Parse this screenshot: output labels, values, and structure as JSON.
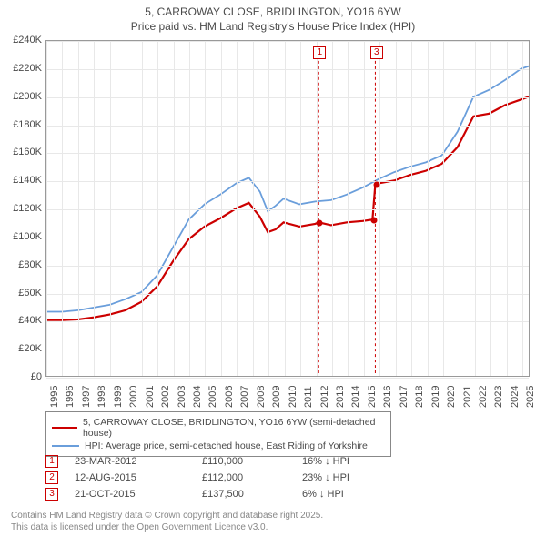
{
  "title_line1": "5, CARROWAY CLOSE, BRIDLINGTON, YO16 6YW",
  "title_line2": "Price paid vs. HM Land Registry's House Price Index (HPI)",
  "chart": {
    "x_min": 1995.0,
    "x_max": 2025.5,
    "y_min": 0,
    "y_max": 240000,
    "y_tick_step": 20000,
    "x_years": [
      1995,
      1996,
      1997,
      1998,
      1999,
      2000,
      2001,
      2002,
      2003,
      2004,
      2005,
      2006,
      2007,
      2008,
      2009,
      2010,
      2011,
      2012,
      2013,
      2014,
      2015,
      2016,
      2017,
      2018,
      2019,
      2020,
      2021,
      2022,
      2023,
      2024,
      2025
    ],
    "y_ticks": [
      "£0",
      "£20K",
      "£40K",
      "£60K",
      "£80K",
      "£100K",
      "£120K",
      "£140K",
      "£160K",
      "£180K",
      "£200K",
      "£220K",
      "£240K"
    ],
    "series": {
      "hpi": {
        "color": "#6a9edb",
        "width": 1.8,
        "points": [
          [
            1995.0,
            46000
          ],
          [
            1996.0,
            46000
          ],
          [
            1997.0,
            47000
          ],
          [
            1998.0,
            49000
          ],
          [
            1999.0,
            51000
          ],
          [
            2000.0,
            55000
          ],
          [
            2001.0,
            60000
          ],
          [
            2002.0,
            72000
          ],
          [
            2003.0,
            92000
          ],
          [
            2004.0,
            112000
          ],
          [
            2005.0,
            123000
          ],
          [
            2006.0,
            130000
          ],
          [
            2007.0,
            138000
          ],
          [
            2007.8,
            142000
          ],
          [
            2008.5,
            132000
          ],
          [
            2009.0,
            118000
          ],
          [
            2009.5,
            122000
          ],
          [
            2010.0,
            127000
          ],
          [
            2011.0,
            123000
          ],
          [
            2012.0,
            125000
          ],
          [
            2013.0,
            126000
          ],
          [
            2014.0,
            130000
          ],
          [
            2015.0,
            135000
          ],
          [
            2016.0,
            141000
          ],
          [
            2017.0,
            146000
          ],
          [
            2018.0,
            150000
          ],
          [
            2019.0,
            153000
          ],
          [
            2020.0,
            158000
          ],
          [
            2021.0,
            175000
          ],
          [
            2022.0,
            200000
          ],
          [
            2023.0,
            205000
          ],
          [
            2024.0,
            212000
          ],
          [
            2025.0,
            220000
          ],
          [
            2025.5,
            222000
          ]
        ]
      },
      "price_paid": {
        "color": "#cc0000",
        "width": 2.2,
        "points": [
          [
            1995.0,
            40000
          ],
          [
            1996.0,
            40000
          ],
          [
            1997.0,
            40500
          ],
          [
            1998.0,
            42000
          ],
          [
            1999.0,
            44000
          ],
          [
            2000.0,
            47000
          ],
          [
            2001.0,
            53000
          ],
          [
            2002.0,
            64000
          ],
          [
            2003.0,
            82000
          ],
          [
            2004.0,
            98000
          ],
          [
            2005.0,
            107000
          ],
          [
            2006.0,
            113000
          ],
          [
            2007.0,
            120000
          ],
          [
            2007.8,
            124000
          ],
          [
            2008.5,
            114000
          ],
          [
            2009.0,
            103000
          ],
          [
            2009.5,
            105000
          ],
          [
            2010.0,
            110000
          ],
          [
            2011.0,
            107000
          ],
          [
            2012.0,
            109000
          ],
          [
            2012.22,
            110000
          ],
          [
            2013.0,
            108000
          ],
          [
            2014.0,
            110000
          ],
          [
            2015.0,
            111000
          ],
          [
            2015.62,
            112000
          ],
          [
            2015.8,
            137500
          ],
          [
            2016.0,
            138000
          ],
          [
            2017.0,
            140000
          ],
          [
            2018.0,
            144000
          ],
          [
            2019.0,
            147000
          ],
          [
            2020.0,
            152000
          ],
          [
            2021.0,
            164000
          ],
          [
            2022.0,
            186000
          ],
          [
            2023.0,
            188000
          ],
          [
            2024.0,
            194000
          ],
          [
            2025.0,
            198000
          ],
          [
            2025.5,
            200000
          ]
        ]
      }
    },
    "sale_dots": {
      "color": "#cc0000",
      "points": [
        [
          2012.22,
          110000
        ],
        [
          2015.62,
          112000
        ],
        [
          2015.8,
          137500
        ]
      ]
    },
    "markers": [
      {
        "label": "1",
        "x": 2012.22
      },
      {
        "label": "3",
        "x": 2015.8
      }
    ]
  },
  "legend": {
    "rows": [
      {
        "label": "5, CARROWAY CLOSE, BRIDLINGTON, YO16 6YW (semi-detached house)",
        "color": "#cc0000"
      },
      {
        "label": "HPI: Average price, semi-detached house, East Riding of Yorkshire",
        "color": "#6a9edb"
      }
    ]
  },
  "sales": [
    {
      "num": "1",
      "date": "23-MAR-2012",
      "price": "£110,000",
      "diff": "16% ↓ HPI"
    },
    {
      "num": "2",
      "date": "12-AUG-2015",
      "price": "£112,000",
      "diff": "23% ↓ HPI"
    },
    {
      "num": "3",
      "date": "21-OCT-2015",
      "price": "£137,500",
      "diff": "6% ↓ HPI"
    }
  ],
  "footer_line1": "Contains HM Land Registry data © Crown copyright and database right 2025.",
  "footer_line2": "This data is licensed under the Open Government Licence v3.0."
}
